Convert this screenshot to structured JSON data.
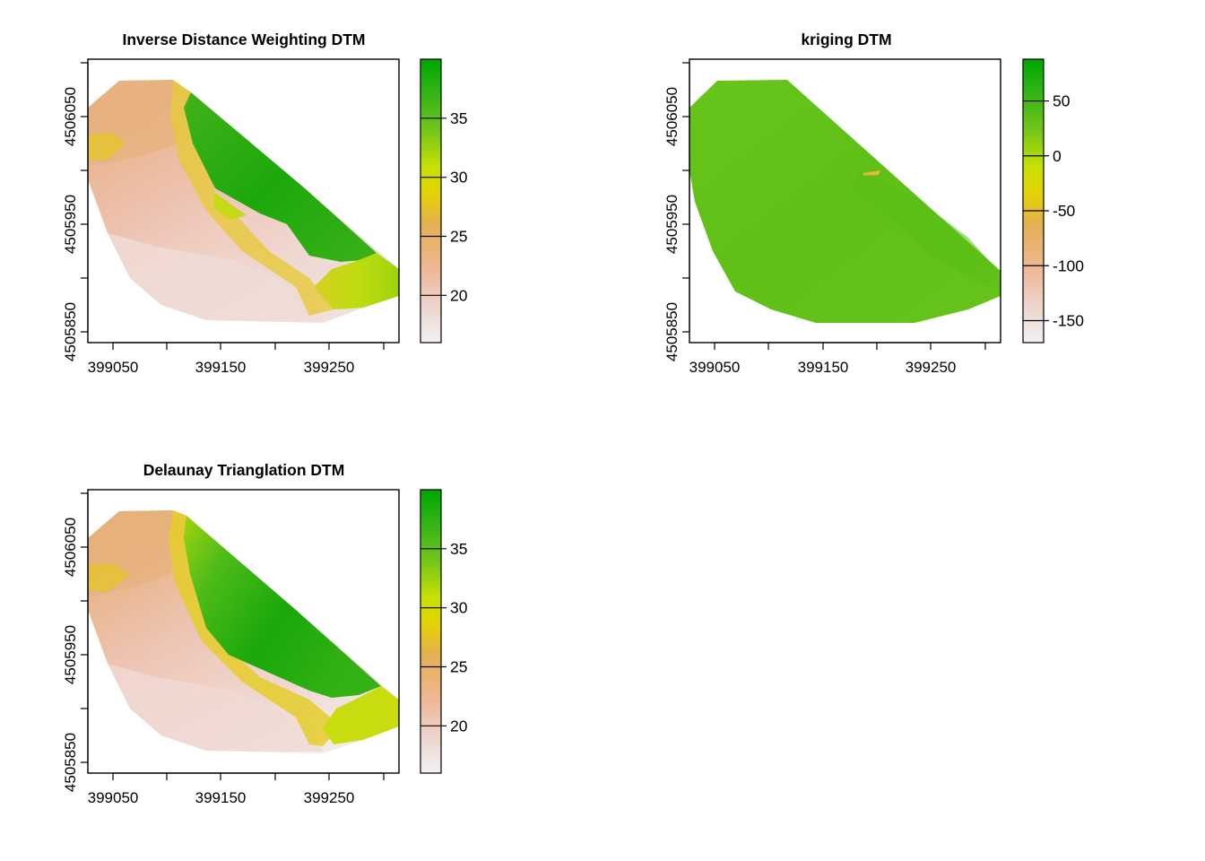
{
  "panels": [
    {
      "id": "idw",
      "title": "Inverse Distance Weighting DTM",
      "x_ticks": [
        "399050",
        "399150",
        "399250"
      ],
      "y_ticks": [
        "4505850",
        "4505950",
        "4506050"
      ],
      "legend": {
        "min": 16,
        "max": 40,
        "labels": [
          {
            "label": "20",
            "value": 20
          },
          {
            "label": "25",
            "value": 25
          },
          {
            "label": "30",
            "value": 30
          },
          {
            "label": "35",
            "value": 35
          }
        ]
      }
    },
    {
      "id": "kriging",
      "title": "kriging DTM",
      "x_ticks": [
        "399050",
        "399150",
        "399250"
      ],
      "y_ticks": [
        "4505850",
        "4505950",
        "4506050"
      ],
      "legend": {
        "min": -170,
        "max": 88,
        "labels": [
          {
            "label": "-150",
            "value": -150
          },
          {
            "label": "-100",
            "value": -100
          },
          {
            "label": "-50",
            "value": -50
          },
          {
            "label": "0",
            "value": 0
          },
          {
            "label": "50",
            "value": 50
          }
        ]
      }
    },
    {
      "id": "delaunay",
      "title": "Delaunay Trianglation DTM",
      "x_ticks": [
        "399050",
        "399150",
        "399250"
      ],
      "y_ticks": [
        "4505850",
        "4505950",
        "4506050"
      ],
      "legend": {
        "min": 16,
        "max": 40,
        "labels": [
          {
            "label": "20",
            "value": 20
          },
          {
            "label": "25",
            "value": 25
          },
          {
            "label": "30",
            "value": 30
          },
          {
            "label": "35",
            "value": 35
          }
        ]
      }
    }
  ],
  "colors": {
    "ramp": [
      "#f2f2f2",
      "#eec9bd",
      "#e6b07c",
      "#e3c326",
      "#e8e600",
      "#a5d800",
      "#5cc01a",
      "#3bb512",
      "#00a600"
    ]
  }
}
